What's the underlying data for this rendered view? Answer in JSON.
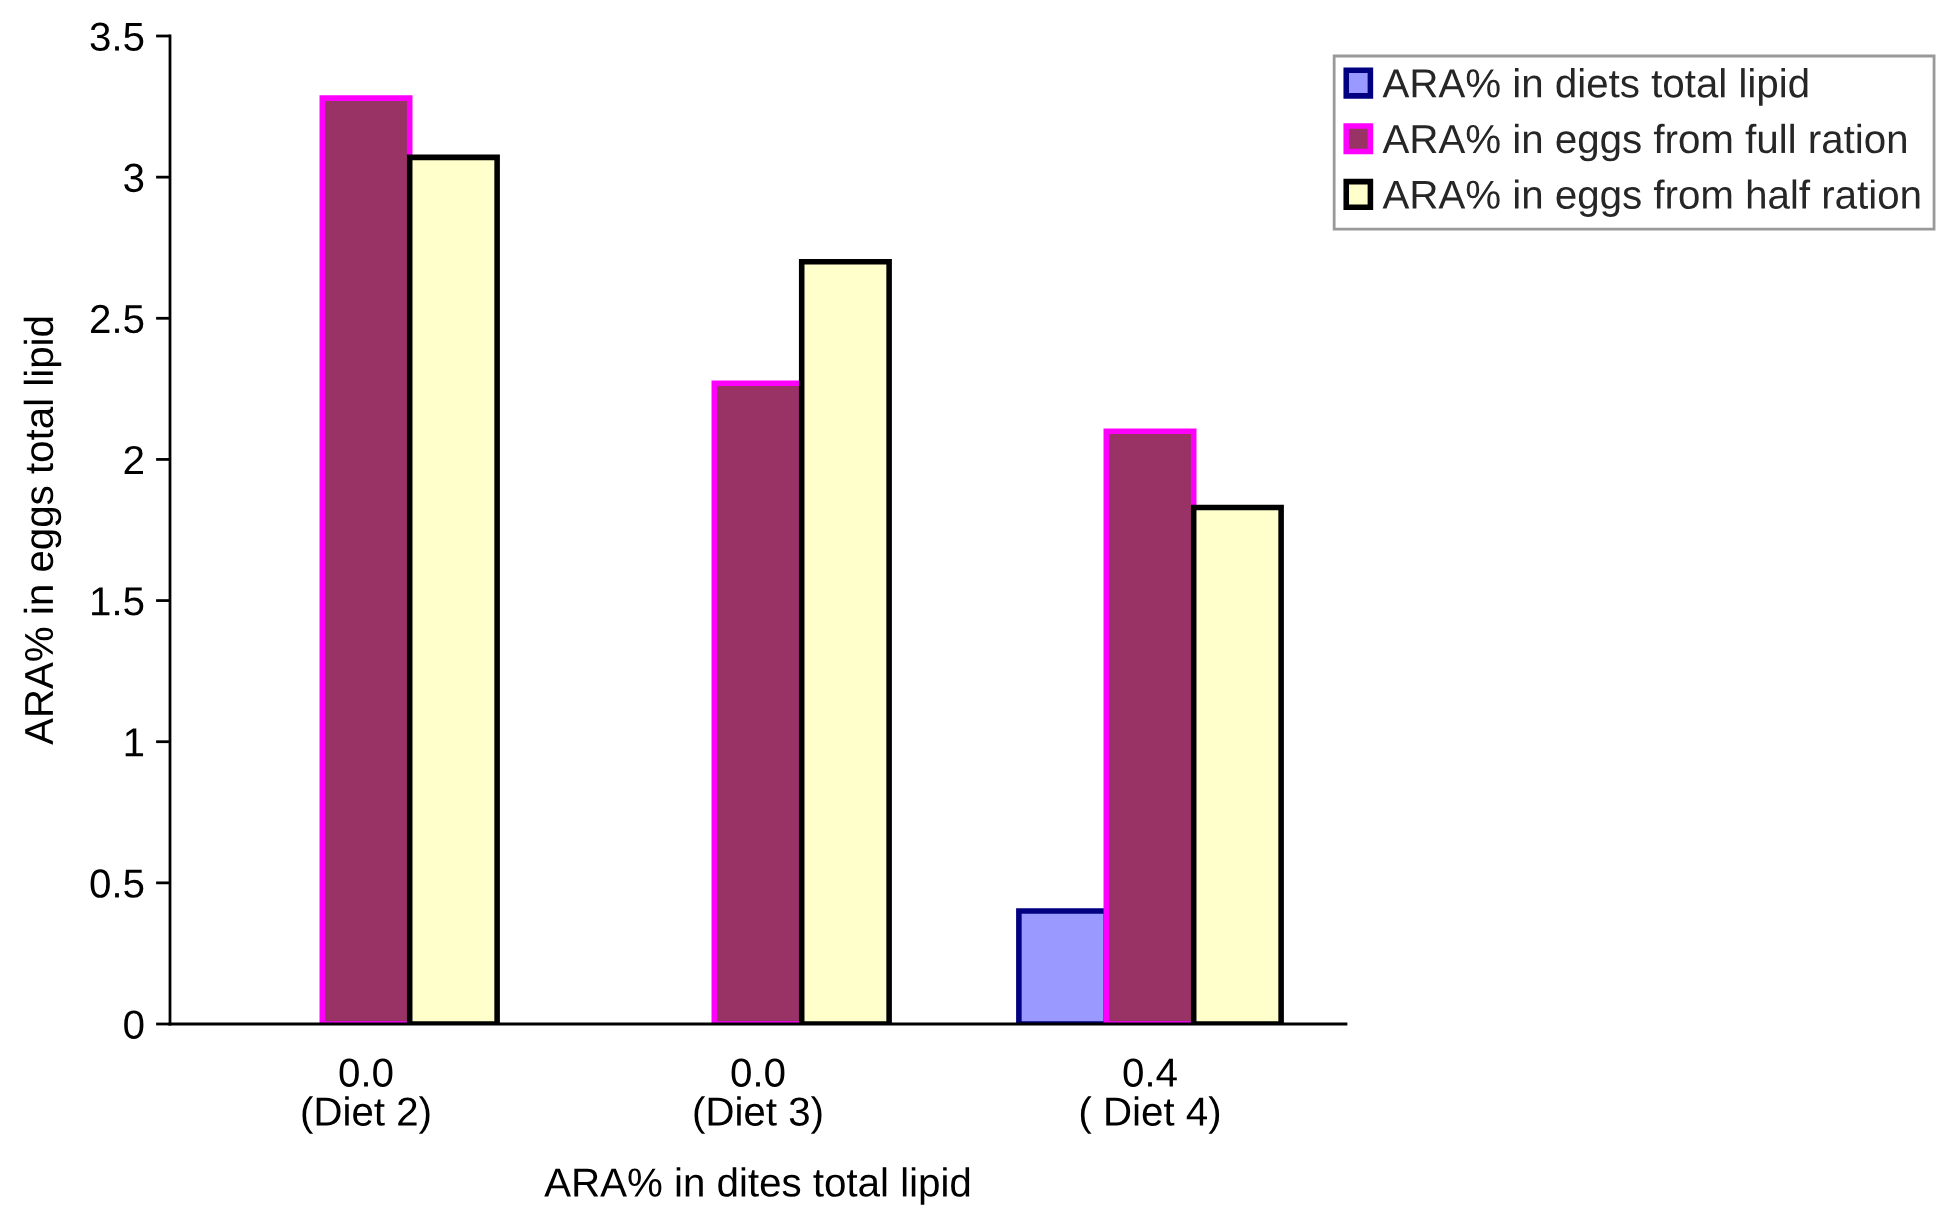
{
  "chart_data": {
    "type": "bar",
    "xlabel": "ARA% in dites total lipid",
    "ylabel": "ARA% in eggs total lipid",
    "categories": [
      "0.0\n(Diet 2)",
      "0.0\n(Diet 3)",
      "0.4\n( Diet 4)"
    ],
    "series": [
      {
        "name": "ARA% in diets total lipid",
        "color": "#9999ff",
        "values": [
          null,
          null,
          0.4
        ]
      },
      {
        "name": "ARA% in eggs from full ration",
        "color": "#993366",
        "values": [
          3.28,
          2.27,
          2.1
        ]
      },
      {
        "name": "ARA% in eggs from half ration",
        "color": "#ffffcc",
        "values": [
          3.07,
          2.7,
          1.83
        ]
      }
    ],
    "ylim": [
      0,
      3.5
    ],
    "yticks": [
      0,
      0.5,
      1,
      1.5,
      2,
      2.5,
      3,
      3.5
    ],
    "legend": "top right",
    "grid": false
  }
}
